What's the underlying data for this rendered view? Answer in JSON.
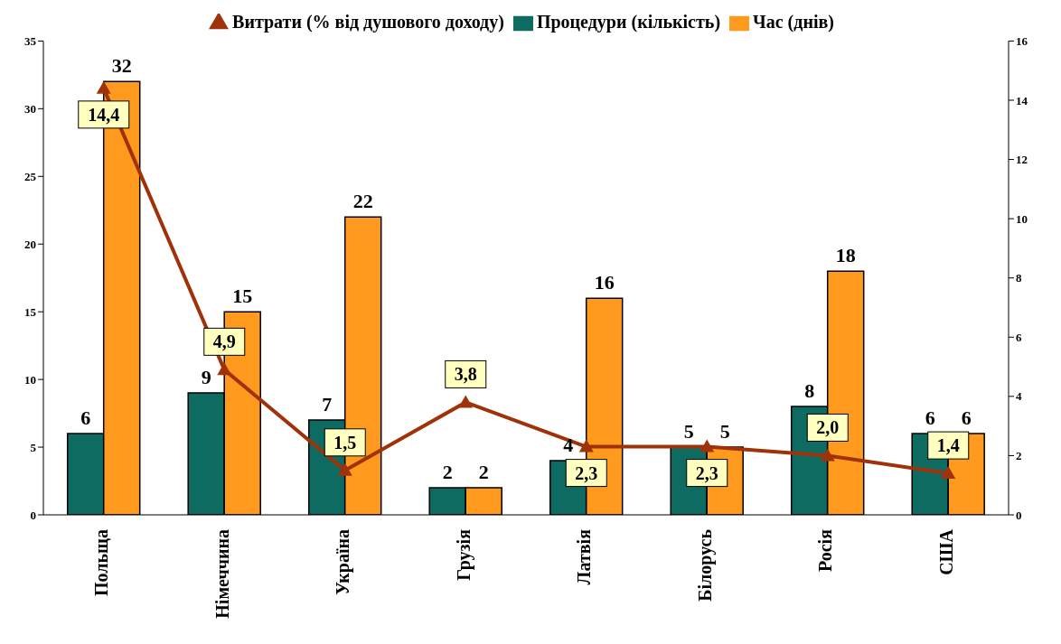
{
  "chart_data": {
    "type": "bar",
    "categories": [
      "Польща",
      "Німеччина",
      "Україна",
      "Грузія",
      "Латвія",
      "Білорусь",
      "Росія",
      "США"
    ],
    "series": [
      {
        "name": "Процедури (кількість)",
        "color": "#0e6b62",
        "values": [
          6,
          9,
          7,
          2,
          4,
          5,
          8,
          6
        ]
      },
      {
        "name": "Час (днів)",
        "color": "#ff9a1e",
        "values": [
          32,
          15,
          22,
          2,
          16,
          5,
          18,
          6
        ]
      },
      {
        "name": "Витрати (% від душового доходу)",
        "type": "line",
        "axis": "y2",
        "color": "#a0320a",
        "marker": "triangle",
        "values": [
          14.4,
          4.9,
          1.5,
          3.8,
          2.3,
          2.3,
          2.0,
          1.4
        ],
        "value_labels": [
          "14,4",
          "4,9",
          "1,5",
          "3,8",
          "2,3",
          "2,3",
          "2,0",
          "1,4"
        ]
      }
    ],
    "ylim": [
      0,
      35
    ],
    "yticks": [
      0,
      5,
      10,
      15,
      20,
      25,
      30,
      35
    ],
    "y2lim": [
      0,
      16
    ],
    "y2ticks": [
      0,
      2,
      4,
      6,
      8,
      10,
      12,
      14,
      16
    ],
    "data_labels": true,
    "grid": false,
    "legend": "top"
  }
}
